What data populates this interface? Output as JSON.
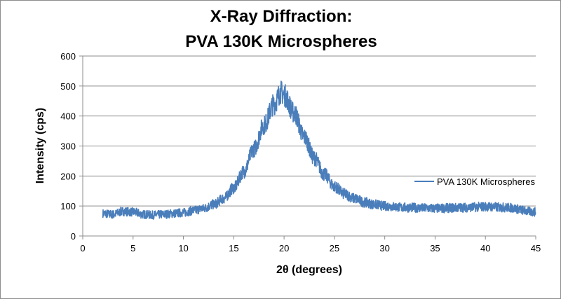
{
  "chart_data": {
    "type": "line",
    "title_lines": [
      "X-Ray Diffraction:",
      "PVA 130K Microspheres"
    ],
    "xlabel": "2θ (degrees)",
    "ylabel": "Intensity (cps)",
    "xlim": [
      0,
      45
    ],
    "ylim": [
      0,
      600
    ],
    "xticks": [
      "0",
      "5",
      "10",
      "15",
      "20",
      "25",
      "30",
      "35",
      "40",
      "45"
    ],
    "yticks": [
      "0",
      "100",
      "200",
      "300",
      "400",
      "500",
      "600"
    ],
    "grid": "horizontal",
    "legend": "right",
    "color": "#4a7ebb",
    "series": [
      {
        "name": "PVA 130K Microspheres",
        "x": [
          2,
          3,
          4,
          5,
          6,
          7,
          8,
          9,
          10,
          11,
          12,
          13,
          14,
          15,
          16,
          17,
          18,
          19,
          19.7,
          20,
          21,
          22,
          23,
          24,
          25,
          26,
          27,
          28,
          29,
          30,
          32,
          35,
          38,
          40,
          42,
          45
        ],
        "y": [
          75,
          72,
          82,
          80,
          72,
          70,
          72,
          75,
          78,
          85,
          92,
          105,
          125,
          160,
          215,
          290,
          370,
          440,
          480,
          470,
          410,
          330,
          260,
          205,
          165,
          140,
          125,
          112,
          105,
          100,
          95,
          92,
          95,
          98,
          95,
          80
        ]
      }
    ]
  }
}
